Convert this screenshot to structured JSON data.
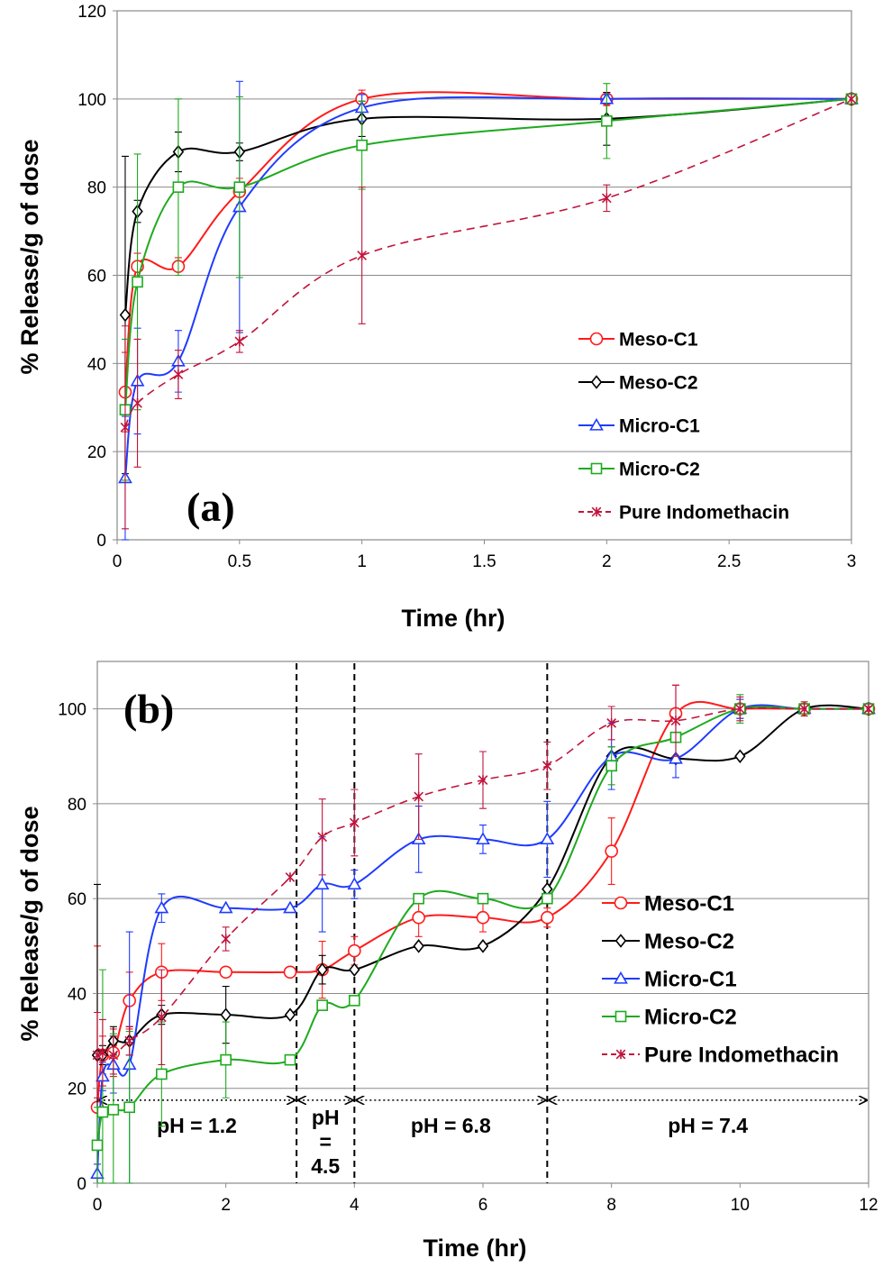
{
  "chart_data": [
    {
      "id": "a",
      "type": "line",
      "panel_label": "(a)",
      "xlabel": "Time (hr)",
      "ylabel": "% Release/g of dose",
      "xlim": [
        0,
        3
      ],
      "ylim": [
        0,
        120
      ],
      "xticks": [
        0,
        0.5,
        1,
        1.5,
        2,
        2.5,
        3
      ],
      "xtick_labels": [
        "0",
        "0.5",
        "1",
        "1.5",
        "2",
        "2.5",
        "3"
      ],
      "yticks": [
        0,
        20,
        40,
        60,
        80,
        100,
        120
      ],
      "ytick_labels": [
        "0",
        "20",
        "40",
        "60",
        "80",
        "100",
        "120"
      ],
      "grid": "horizontal",
      "legend_position": "right",
      "series": [
        {
          "name": "Meso-C1",
          "color": "#ff1a1a",
          "marker": "circle",
          "dash": "solid",
          "x": [
            0.033,
            0.083,
            0.25,
            0.5,
            1,
            2,
            3
          ],
          "y": [
            33.5,
            62,
            62,
            79,
            100,
            100,
            100
          ],
          "err": [
            9,
            3,
            2,
            3,
            2,
            1.5,
            0
          ]
        },
        {
          "name": "Meso-C2",
          "color": "#000000",
          "marker": "diamond",
          "dash": "solid",
          "x": [
            0.033,
            0.083,
            0.25,
            0.5,
            1,
            2,
            3
          ],
          "y": [
            51,
            74.5,
            88,
            88,
            95.5,
            95.5,
            100
          ],
          "err": [
            36,
            2.5,
            4.5,
            2,
            4,
            6,
            0
          ]
        },
        {
          "name": "Micro-C1",
          "color": "#1f3bff",
          "marker": "triangle",
          "dash": "solid",
          "x": [
            0.033,
            0.083,
            0.25,
            0.5,
            1,
            2,
            3
          ],
          "y": [
            14,
            36,
            40.5,
            75.5,
            98,
            100,
            100
          ],
          "err": [
            14,
            12,
            7,
            28.5,
            3,
            1,
            0
          ]
        },
        {
          "name": "Micro-C2",
          "color": "#1faa1f",
          "marker": "square",
          "dash": "solid",
          "x": [
            0.033,
            0.083,
            0.25,
            0.5,
            1,
            2,
            3
          ],
          "y": [
            29.5,
            58.5,
            80,
            80,
            89.5,
            95,
            100
          ],
          "err": [
            16,
            29,
            20,
            20.5,
            10,
            8.5,
            0
          ]
        },
        {
          "name": "Pure Indomethacin",
          "color": "#c0143c",
          "marker": "star",
          "dash": "dashed",
          "x": [
            0.033,
            0.083,
            0.25,
            0.5,
            1,
            2,
            3
          ],
          "y": [
            25.5,
            31,
            37.5,
            45,
            64.5,
            77.5,
            100
          ],
          "err": [
            23,
            14.5,
            5.5,
            2.5,
            15.5,
            3,
            0
          ]
        }
      ]
    },
    {
      "id": "b",
      "type": "line",
      "panel_label": "(b)",
      "xlabel": "Time (hr)",
      "ylabel": "% Release/g of dose",
      "xlim": [
        0,
        12
      ],
      "ylim": [
        0,
        110
      ],
      "xticks": [
        0,
        2,
        4,
        6,
        8,
        10,
        12
      ],
      "xtick_labels": [
        "0",
        "2",
        "4",
        "6",
        "8",
        "10",
        "12"
      ],
      "yticks": [
        0,
        20,
        40,
        60,
        80,
        100
      ],
      "ytick_labels": [
        "0",
        "20",
        "40",
        "60",
        "80",
        "100"
      ],
      "grid": "horizontal",
      "legend_position": "right",
      "ph_boundaries": [
        3.1,
        4,
        7
      ],
      "ph_regions": [
        {
          "label": "pH = 1.2",
          "from": 0,
          "to": 3.1
        },
        {
          "label": "pH\n=\n4.5",
          "from": 3.1,
          "to": 4
        },
        {
          "label": "pH = 6.8",
          "from": 4,
          "to": 7
        },
        {
          "label": "pH = 7.4",
          "from": 7,
          "to": 12
        }
      ],
      "series": [
        {
          "name": "Meso-C1",
          "color": "#ff1a1a",
          "marker": "circle",
          "dash": "solid",
          "x": [
            0,
            0.083,
            0.25,
            0.5,
            1,
            2,
            3,
            3.5,
            4,
            5,
            6,
            7,
            8,
            9,
            10,
            11,
            12
          ],
          "y": [
            16,
            27,
            27.5,
            38.5,
            44.5,
            44.5,
            44.5,
            45,
            49,
            56,
            56,
            56,
            70,
            99,
            100,
            100,
            100
          ],
          "err": [
            34,
            4,
            5,
            6,
            6,
            0,
            0,
            6,
            3,
            4,
            3,
            2,
            7,
            6,
            2,
            1,
            1
          ]
        },
        {
          "name": "Meso-C2",
          "color": "#000000",
          "marker": "diamond",
          "dash": "solid",
          "x": [
            0,
            0.083,
            0.25,
            0.5,
            1,
            2,
            3,
            3.5,
            4,
            5,
            6,
            7,
            8,
            9,
            10,
            11,
            12
          ],
          "y": [
            27,
            27,
            30,
            30,
            35.5,
            35.5,
            35.5,
            45,
            45,
            50,
            50,
            62,
            90,
            89.5,
            90,
            100,
            100
          ],
          "err": [
            36,
            2,
            3,
            3,
            2,
            6,
            0,
            3,
            0,
            0,
            0,
            0,
            2,
            0,
            0,
            0,
            0
          ]
        },
        {
          "name": "Micro-C1",
          "color": "#1f3bff",
          "marker": "triangle",
          "dash": "solid",
          "x": [
            0,
            0.083,
            0.25,
            0.5,
            1,
            2,
            3,
            3.5,
            4,
            5,
            6,
            7,
            8,
            9,
            10,
            11,
            12
          ],
          "y": [
            2,
            22.5,
            25,
            25,
            58,
            58,
            58,
            63,
            63,
            72.5,
            72.5,
            72.5,
            90,
            89.5,
            100,
            100,
            100
          ],
          "err": [
            2,
            3,
            6,
            28,
            3,
            0,
            0,
            10,
            3,
            7,
            3,
            8,
            7,
            4,
            2,
            1,
            0
          ]
        },
        {
          "name": "Micro-C2",
          "color": "#1faa1f",
          "marker": "square",
          "dash": "solid",
          "x": [
            0,
            0.083,
            0.25,
            0.5,
            1,
            2,
            3,
            3.5,
            4,
            5,
            6,
            7,
            8,
            9,
            10,
            11,
            12
          ],
          "y": [
            8,
            15,
            15.5,
            16,
            23,
            26,
            26,
            37.5,
            38.5,
            60,
            60,
            60,
            88,
            94,
            100,
            100,
            100
          ],
          "err": [
            8,
            30,
            16,
            16,
            11,
            8,
            0,
            0,
            0,
            0,
            0,
            0,
            4,
            0,
            3,
            1,
            0
          ]
        },
        {
          "name": "Pure Indomethacin",
          "color": "#c0143c",
          "marker": "star",
          "dash": "dashed",
          "x": [
            0,
            0.083,
            0.25,
            0.5,
            1,
            2,
            3,
            3.5,
            4,
            5,
            6,
            7,
            8,
            9,
            10,
            11,
            12
          ],
          "y": [
            27,
            27.5,
            27,
            30,
            35,
            51.5,
            64.5,
            73,
            76,
            81.5,
            85,
            88,
            97,
            97.5,
            100,
            100,
            100
          ],
          "err": [
            9,
            7,
            4,
            3,
            10,
            2.5,
            0,
            8,
            7,
            9,
            6,
            5,
            3.5,
            7.5,
            2.5,
            1.5,
            0.5
          ]
        }
      ]
    }
  ]
}
